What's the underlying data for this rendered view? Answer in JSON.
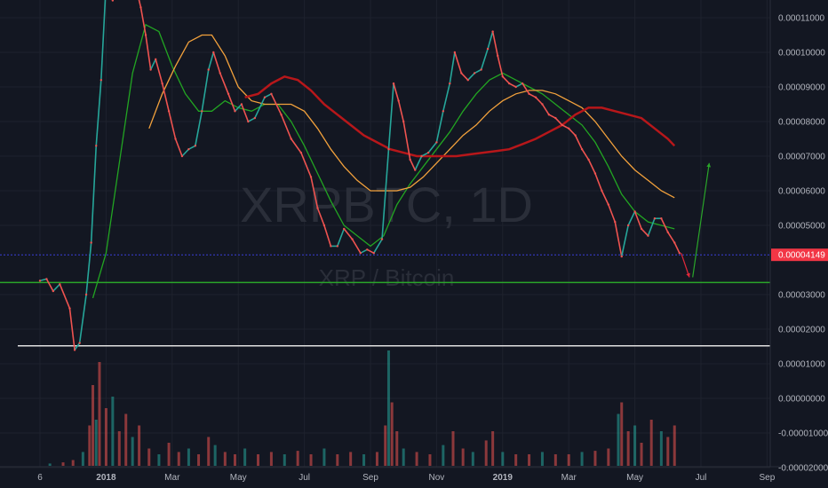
{
  "chart_data": {
    "type": "line",
    "title": "XRPBTC, 1D",
    "subtitle": "XRP / Bitcoin",
    "watermark": {
      "symbol": "XRPBTC, 1D",
      "name": "XRP / Bitcoin"
    },
    "x_axis": {
      "ticks": [
        {
          "label": "6",
          "month": 0,
          "bold": false
        },
        {
          "label": "2018",
          "month": 2,
          "bold": true
        },
        {
          "label": "Mar",
          "month": 4,
          "bold": false
        },
        {
          "label": "May",
          "month": 6,
          "bold": false
        },
        {
          "label": "Jul",
          "month": 8,
          "bold": false
        },
        {
          "label": "Sep",
          "month": 10,
          "bold": false
        },
        {
          "label": "Nov",
          "month": 12,
          "bold": false
        },
        {
          "label": "2019",
          "month": 14,
          "bold": true
        },
        {
          "label": "Mar",
          "month": 16,
          "bold": false
        },
        {
          "label": "May",
          "month": 18,
          "bold": false
        },
        {
          "label": "Jul",
          "month": 20,
          "bold": false
        },
        {
          "label": "Sep",
          "month": 22,
          "bold": false
        }
      ]
    },
    "y_axis": {
      "ylim": [
        -2e-05,
        0.00012
      ],
      "ticks": [
        {
          "value": 0.00011,
          "label": "0.00011000"
        },
        {
          "value": 0.0001,
          "label": "0.00010000"
        },
        {
          "value": 9e-05,
          "label": "0.00009000"
        },
        {
          "value": 8e-05,
          "label": "0.00008000"
        },
        {
          "value": 7e-05,
          "label": "0.00007000"
        },
        {
          "value": 6e-05,
          "label": "0.00006000"
        },
        {
          "value": 5e-05,
          "label": "0.00005000"
        },
        {
          "value": 3e-05,
          "label": "0.00003000"
        },
        {
          "value": 2e-05,
          "label": "0.00002000"
        },
        {
          "value": 1e-05,
          "label": "0.00001000"
        },
        {
          "value": 0.0,
          "label": "0.00000000"
        },
        {
          "value": -1e-05,
          "label": "-0.00001000"
        },
        {
          "value": -2e-05,
          "label": "-0.00002000"
        }
      ]
    },
    "last_price": {
      "value": 4.149e-05,
      "label": "0.00004149",
      "color": "#f23645"
    },
    "horizontal_lines": [
      {
        "value": 4.149e-05,
        "color": "#3b3fd8"
      },
      {
        "value": 3.35e-05,
        "color": "#2aa52a"
      },
      {
        "value": 1.52e-05,
        "color": "#e0e0e0"
      }
    ],
    "price_series": [
      [
        0.0,
        3.4e-05
      ],
      [
        0.2,
        3.45e-05
      ],
      [
        0.4,
        3.1e-05
      ],
      [
        0.6,
        3.3e-05
      ],
      [
        0.9,
        2.6e-05
      ],
      [
        1.05,
        1.4e-05
      ],
      [
        1.2,
        1.6e-05
      ],
      [
        1.4,
        3e-05
      ],
      [
        1.55,
        4.5e-05
      ],
      [
        1.7,
        7.3e-05
      ],
      [
        1.85,
        9.2e-05
      ],
      [
        2.0,
        0.00012
      ],
      [
        2.2,
        0.000115
      ],
      [
        2.45,
        0.000123
      ],
      [
        2.7,
        0.000117
      ],
      [
        2.9,
        0.000119
      ],
      [
        3.05,
        0.000113
      ],
      [
        3.2,
        0.000105
      ],
      [
        3.35,
        9.5e-05
      ],
      [
        3.5,
        9.8e-05
      ],
      [
        3.7,
        9.1e-05
      ],
      [
        3.9,
        8.3e-05
      ],
      [
        4.1,
        7.5e-05
      ],
      [
        4.3,
        7e-05
      ],
      [
        4.5,
        7.2e-05
      ],
      [
        4.7,
        7.3e-05
      ],
      [
        4.9,
        8.3e-05
      ],
      [
        5.1,
        9.5e-05
      ],
      [
        5.25,
        0.0001
      ],
      [
        5.45,
        9.4e-05
      ],
      [
        5.7,
        8.8e-05
      ],
      [
        5.9,
        8.3e-05
      ],
      [
        6.1,
        8.5e-05
      ],
      [
        6.3,
        8e-05
      ],
      [
        6.5,
        8.1e-05
      ],
      [
        6.8,
        8.7e-05
      ],
      [
        7.0,
        8.8e-05
      ],
      [
        7.3,
        8.2e-05
      ],
      [
        7.6,
        7.5e-05
      ],
      [
        7.9,
        7.1e-05
      ],
      [
        8.2,
        6.4e-05
      ],
      [
        8.4,
        5.5e-05
      ],
      [
        8.6,
        5e-05
      ],
      [
        8.8,
        4.4e-05
      ],
      [
        9.0,
        4.4e-05
      ],
      [
        9.2,
        4.9e-05
      ],
      [
        9.45,
        4.6e-05
      ],
      [
        9.7,
        4.2e-05
      ],
      [
        9.9,
        4.3e-05
      ],
      [
        10.1,
        4.2e-05
      ],
      [
        10.35,
        4.6e-05
      ],
      [
        10.55,
        7.2e-05
      ],
      [
        10.7,
        9.1e-05
      ],
      [
        10.85,
        8.6e-05
      ],
      [
        11.0,
        8e-05
      ],
      [
        11.2,
        6.9e-05
      ],
      [
        11.35,
        6.6e-05
      ],
      [
        11.55,
        7e-05
      ],
      [
        11.75,
        7.1e-05
      ],
      [
        12.0,
        7.4e-05
      ],
      [
        12.2,
        8.3e-05
      ],
      [
        12.4,
        9.1e-05
      ],
      [
        12.55,
        0.0001
      ],
      [
        12.75,
        9.4e-05
      ],
      [
        12.95,
        9.2e-05
      ],
      [
        13.15,
        9.4e-05
      ],
      [
        13.35,
        9.5e-05
      ],
      [
        13.55,
        0.000101
      ],
      [
        13.7,
        0.000106
      ],
      [
        13.85,
        9.9e-05
      ],
      [
        14.0,
        9.3e-05
      ],
      [
        14.2,
        9.1e-05
      ],
      [
        14.4,
        9e-05
      ],
      [
        14.6,
        9.1e-05
      ],
      [
        14.8,
        8.8e-05
      ],
      [
        15.0,
        8.7e-05
      ],
      [
        15.2,
        8.5e-05
      ],
      [
        15.4,
        8.2e-05
      ],
      [
        15.6,
        8.1e-05
      ],
      [
        15.8,
        7.9e-05
      ],
      [
        16.0,
        7.8e-05
      ],
      [
        16.2,
        7.6e-05
      ],
      [
        16.4,
        7.2e-05
      ],
      [
        16.6,
        6.9e-05
      ],
      [
        16.8,
        6.5e-05
      ],
      [
        17.0,
        6e-05
      ],
      [
        17.2,
        5.6e-05
      ],
      [
        17.4,
        5.1e-05
      ],
      [
        17.6,
        4.1e-05
      ],
      [
        17.8,
        5e-05
      ],
      [
        18.0,
        5.4e-05
      ],
      [
        18.2,
        4.9e-05
      ],
      [
        18.4,
        4.7e-05
      ],
      [
        18.6,
        5.2e-05
      ],
      [
        18.8,
        5.2e-05
      ],
      [
        19.0,
        4.8e-05
      ],
      [
        19.2,
        4.5e-05
      ],
      [
        19.35,
        4.2e-05
      ]
    ],
    "volume_series": [
      [
        0.3,
        0.02
      ],
      [
        0.7,
        0.03
      ],
      [
        1.0,
        0.05
      ],
      [
        1.3,
        0.12
      ],
      [
        1.5,
        0.35
      ],
      [
        1.6,
        0.7
      ],
      [
        1.7,
        0.4
      ],
      [
        1.8,
        0.9
      ],
      [
        2.0,
        0.5
      ],
      [
        2.2,
        0.6
      ],
      [
        2.4,
        0.3
      ],
      [
        2.6,
        0.45
      ],
      [
        2.8,
        0.25
      ],
      [
        3.0,
        0.35
      ],
      [
        3.3,
        0.15
      ],
      [
        3.6,
        0.1
      ],
      [
        3.9,
        0.2
      ],
      [
        4.2,
        0.12
      ],
      [
        4.5,
        0.15
      ],
      [
        4.8,
        0.1
      ],
      [
        5.1,
        0.25
      ],
      [
        5.3,
        0.18
      ],
      [
        5.6,
        0.12
      ],
      [
        5.9,
        0.1
      ],
      [
        6.2,
        0.15
      ],
      [
        6.6,
        0.1
      ],
      [
        7.0,
        0.12
      ],
      [
        7.4,
        0.1
      ],
      [
        7.8,
        0.13
      ],
      [
        8.2,
        0.1
      ],
      [
        8.6,
        0.15
      ],
      [
        9.0,
        0.1
      ],
      [
        9.4,
        0.12
      ],
      [
        9.8,
        0.1
      ],
      [
        10.2,
        0.12
      ],
      [
        10.45,
        0.35
      ],
      [
        10.55,
        1.0
      ],
      [
        10.65,
        0.55
      ],
      [
        10.8,
        0.3
      ],
      [
        11.0,
        0.15
      ],
      [
        11.4,
        0.12
      ],
      [
        11.8,
        0.1
      ],
      [
        12.2,
        0.18
      ],
      [
        12.5,
        0.3
      ],
      [
        12.8,
        0.15
      ],
      [
        13.1,
        0.12
      ],
      [
        13.5,
        0.22
      ],
      [
        13.7,
        0.3
      ],
      [
        14.0,
        0.12
      ],
      [
        14.4,
        0.1
      ],
      [
        14.8,
        0.1
      ],
      [
        15.2,
        0.12
      ],
      [
        15.6,
        0.1
      ],
      [
        16.0,
        0.1
      ],
      [
        16.4,
        0.12
      ],
      [
        16.8,
        0.13
      ],
      [
        17.2,
        0.15
      ],
      [
        17.5,
        0.45
      ],
      [
        17.6,
        0.55
      ],
      [
        17.8,
        0.3
      ],
      [
        18.0,
        0.35
      ],
      [
        18.2,
        0.2
      ],
      [
        18.5,
        0.4
      ],
      [
        18.8,
        0.3
      ],
      [
        19.0,
        0.25
      ],
      [
        19.2,
        0.35
      ]
    ],
    "moving_averages": [
      {
        "color": "#22a522",
        "points": [
          [
            1.6,
            2.9e-05
          ],
          [
            2.0,
            4.2e-05
          ],
          [
            2.4,
            6.8e-05
          ],
          [
            2.8,
            9.4e-05
          ],
          [
            3.2,
            0.000108
          ],
          [
            3.6,
            0.000106
          ],
          [
            4.0,
            9.6e-05
          ],
          [
            4.4,
            8.8e-05
          ],
          [
            4.8,
            8.3e-05
          ],
          [
            5.2,
            8.3e-05
          ],
          [
            5.6,
            8.6e-05
          ],
          [
            6.0,
            8.4e-05
          ],
          [
            6.4,
            8.3e-05
          ],
          [
            6.8,
            8.5e-05
          ],
          [
            7.2,
            8.5e-05
          ],
          [
            7.6,
            8e-05
          ],
          [
            8.0,
            7.3e-05
          ],
          [
            8.4,
            6.5e-05
          ],
          [
            8.8,
            5.7e-05
          ],
          [
            9.2,
            5e-05
          ],
          [
            9.6,
            4.7e-05
          ],
          [
            10.0,
            4.4e-05
          ],
          [
            10.4,
            4.7e-05
          ],
          [
            10.8,
            5.6e-05
          ],
          [
            11.2,
            6.2e-05
          ],
          [
            11.6,
            6.7e-05
          ],
          [
            12.0,
            7.2e-05
          ],
          [
            12.4,
            7.7e-05
          ],
          [
            12.8,
            8.3e-05
          ],
          [
            13.2,
            8.8e-05
          ],
          [
            13.6,
            9.2e-05
          ],
          [
            14.0,
            9.4e-05
          ],
          [
            14.4,
            9.2e-05
          ],
          [
            14.8,
            9e-05
          ],
          [
            15.2,
            8.8e-05
          ],
          [
            15.6,
            8.5e-05
          ],
          [
            16.0,
            8.2e-05
          ],
          [
            16.4,
            7.9e-05
          ],
          [
            16.8,
            7.4e-05
          ],
          [
            17.2,
            6.7e-05
          ],
          [
            17.6,
            5.9e-05
          ],
          [
            18.0,
            5.4e-05
          ],
          [
            18.4,
            5.1e-05
          ],
          [
            18.8,
            5e-05
          ],
          [
            19.2,
            4.9e-05
          ]
        ]
      },
      {
        "color": "#f2a13c",
        "points": [
          [
            3.3,
            7.8e-05
          ],
          [
            3.7,
            8.8e-05
          ],
          [
            4.1,
            9.6e-05
          ],
          [
            4.5,
            0.000103
          ],
          [
            4.9,
            0.000105
          ],
          [
            5.2,
            0.000105
          ],
          [
            5.6,
            9.9e-05
          ],
          [
            6.0,
            9e-05
          ],
          [
            6.4,
            8.6e-05
          ],
          [
            6.8,
            8.5e-05
          ],
          [
            7.2,
            8.5e-05
          ],
          [
            7.6,
            8.5e-05
          ],
          [
            8.0,
            8.3e-05
          ],
          [
            8.4,
            7.8e-05
          ],
          [
            8.8,
            7.2e-05
          ],
          [
            9.2,
            6.7e-05
          ],
          [
            9.6,
            6.3e-05
          ],
          [
            10.0,
            6e-05
          ],
          [
            10.4,
            6e-05
          ],
          [
            10.8,
            6e-05
          ],
          [
            11.2,
            6.1e-05
          ],
          [
            11.6,
            6.4e-05
          ],
          [
            12.0,
            6.8e-05
          ],
          [
            12.4,
            7.2e-05
          ],
          [
            12.8,
            7.6e-05
          ],
          [
            13.2,
            7.9e-05
          ],
          [
            13.6,
            8.3e-05
          ],
          [
            14.0,
            8.6e-05
          ],
          [
            14.4,
            8.8e-05
          ],
          [
            14.8,
            8.9e-05
          ],
          [
            15.2,
            8.9e-05
          ],
          [
            15.6,
            8.8e-05
          ],
          [
            16.0,
            8.6e-05
          ],
          [
            16.4,
            8.4e-05
          ],
          [
            16.8,
            8e-05
          ],
          [
            17.2,
            7.5e-05
          ],
          [
            17.6,
            7e-05
          ],
          [
            18.0,
            6.6e-05
          ],
          [
            18.4,
            6.3e-05
          ],
          [
            18.8,
            6e-05
          ],
          [
            19.2,
            5.8e-05
          ]
        ]
      },
      {
        "color": "#b7171a",
        "points": [
          [
            6.2,
            8.7e-05
          ],
          [
            6.6,
            8.8e-05
          ],
          [
            7.0,
            9.1e-05
          ],
          [
            7.4,
            9.3e-05
          ],
          [
            7.8,
            9.2e-05
          ],
          [
            8.2,
            8.9e-05
          ],
          [
            8.6,
            8.5e-05
          ],
          [
            9.0,
            8.2e-05
          ],
          [
            9.4,
            7.9e-05
          ],
          [
            9.8,
            7.6e-05
          ],
          [
            10.2,
            7.4e-05
          ],
          [
            10.6,
            7.2e-05
          ],
          [
            11.0,
            7.1e-05
          ],
          [
            11.4,
            7e-05
          ],
          [
            11.8,
            7e-05
          ],
          [
            12.2,
            7e-05
          ],
          [
            12.6,
            7e-05
          ],
          [
            13.0,
            7.05e-05
          ],
          [
            13.4,
            7.1e-05
          ],
          [
            13.8,
            7.15e-05
          ],
          [
            14.2,
            7.2e-05
          ],
          [
            14.6,
            7.35e-05
          ],
          [
            15.0,
            7.5e-05
          ],
          [
            15.4,
            7.7e-05
          ],
          [
            15.8,
            7.9e-05
          ],
          [
            16.2,
            8.2e-05
          ],
          [
            16.6,
            8.4e-05
          ],
          [
            17.0,
            8.4e-05
          ],
          [
            17.4,
            8.3e-05
          ],
          [
            17.8,
            8.2e-05
          ],
          [
            18.2,
            8.1e-05
          ],
          [
            18.6,
            7.8e-05
          ],
          [
            19.0,
            7.5e-05
          ],
          [
            19.2,
            7.3e-05
          ]
        ]
      }
    ],
    "projection": [
      {
        "color": "#e0283a",
        "from": [
          19.4,
          4.2e-05
        ],
        "to": [
          19.65,
          3.5e-05
        ]
      },
      {
        "color": "#2aa52a",
        "from": [
          19.75,
          3.5e-05
        ],
        "to": [
          20.25,
          6.8e-05
        ]
      }
    ]
  }
}
